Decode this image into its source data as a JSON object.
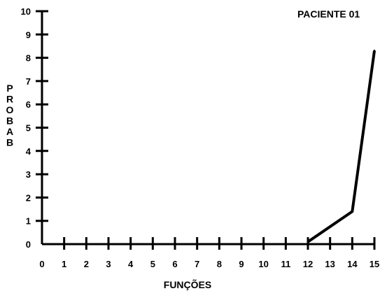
{
  "chart_data": {
    "type": "line",
    "title": "PACIENTE 01",
    "xlabel": "FUNÇÕES",
    "ylabel": "PROBAB",
    "x_ticks": [
      "0",
      "1",
      "2",
      "3",
      "4",
      "5",
      "6",
      "7",
      "8",
      "9",
      "10",
      "11",
      "12",
      "13",
      "14",
      "15"
    ],
    "y_ticks": [
      "0",
      "1",
      "2",
      "3",
      "4",
      "5",
      "6",
      "7",
      "8",
      "9",
      "10"
    ],
    "xlim": [
      0,
      15
    ],
    "ylim": [
      0,
      10
    ],
    "grid": false,
    "series": [
      {
        "x": [
          12,
          14,
          15
        ],
        "y": [
          0.1,
          1.4,
          8.3
        ]
      }
    ],
    "colors": {
      "line": "#000000",
      "axis": "#000000"
    }
  }
}
